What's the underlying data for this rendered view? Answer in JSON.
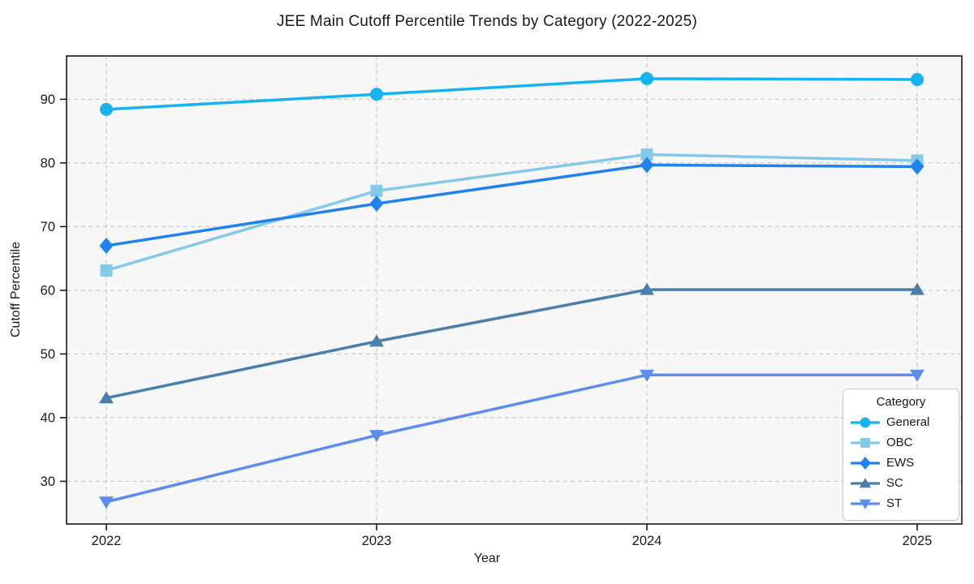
{
  "title": "JEE Main Cutoff Percentile Trends by Category (2022-2025)",
  "chart_data": {
    "type": "line",
    "x": [
      2022,
      2023,
      2024,
      2025
    ],
    "xlabel": "Year",
    "ylabel": "Cutoff Percentile",
    "ylim": [
      23.3,
      96.8
    ],
    "yticks": [
      30,
      40,
      50,
      60,
      70,
      80,
      90
    ],
    "grid": true,
    "grid_style": "dashed",
    "grid_color": "#cccccc",
    "plot_background": "#f7f7f8",
    "axis_color": "#1a1a1a",
    "legend": {
      "title": "Category",
      "position": "lower right"
    },
    "series": [
      {
        "name": "General",
        "marker": "circle",
        "color": "#17b3f0",
        "values": [
          88.41,
          90.78,
          93.24,
          93.1
        ]
      },
      {
        "name": "OBC",
        "marker": "square",
        "color": "#85c9e9",
        "values": [
          63.11,
          75.62,
          81.33,
          80.38
        ]
      },
      {
        "name": "EWS",
        "marker": "diamond",
        "color": "#1e82f0",
        "values": [
          67.0,
          73.61,
          79.68,
          79.43
        ]
      },
      {
        "name": "SC",
        "marker": "triangle-up",
        "color": "#4a7fac",
        "values": [
          43.08,
          51.98,
          60.09,
          60.09
        ]
      },
      {
        "name": "ST",
        "marker": "triangle-down",
        "color": "#5c8dee",
        "values": [
          26.77,
          37.23,
          46.7,
          46.7
        ]
      }
    ]
  }
}
